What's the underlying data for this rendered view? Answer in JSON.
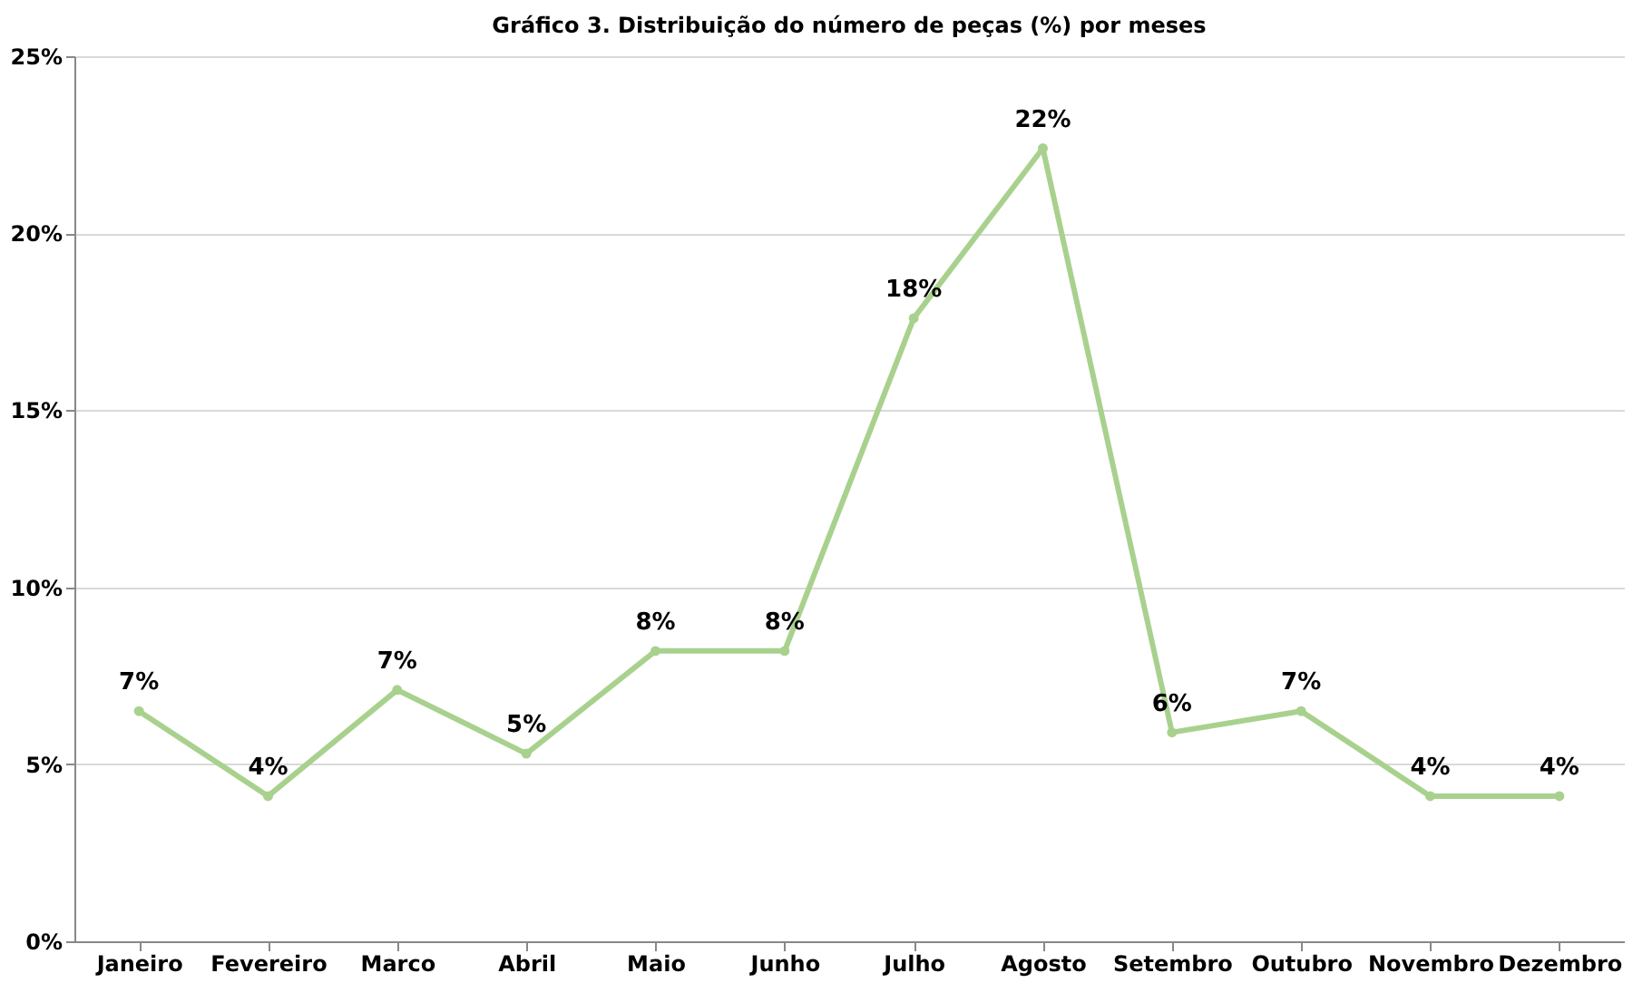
{
  "chart_data": {
    "type": "line",
    "title": "Gráfico  3. Distribuição do número de peças (%) por meses",
    "categories": [
      "Janeiro",
      "Fevereiro",
      "Marco",
      "Abril",
      "Maio",
      "Junho",
      "Julho",
      "Agosto",
      "Setembro",
      "Outubro",
      "Novembro",
      "Dezembro"
    ],
    "series": [
      {
        "color": "#a9d18e",
        "values": [
          6.5,
          4.1,
          7.1,
          5.3,
          8.2,
          8.2,
          17.6,
          22.4,
          5.9,
          6.5,
          4.1,
          4.1
        ],
        "value_labels": [
          "7%",
          "4%",
          "7%",
          "5%",
          "8%",
          "8%",
          "18%",
          "22%",
          "6%",
          "7%",
          "4%",
          "4%"
        ]
      }
    ],
    "ylim": [
      0,
      25
    ],
    "yticks": [
      {
        "value": 0,
        "label": "0%"
      },
      {
        "value": 5,
        "label": "5%"
      },
      {
        "value": 10,
        "label": "10%"
      },
      {
        "value": 15,
        "label": "15%"
      },
      {
        "value": 20,
        "label": "20%"
      },
      {
        "value": 25,
        "label": "25%"
      }
    ],
    "grid": "y",
    "marker": "circle",
    "line_style": "solid"
  }
}
